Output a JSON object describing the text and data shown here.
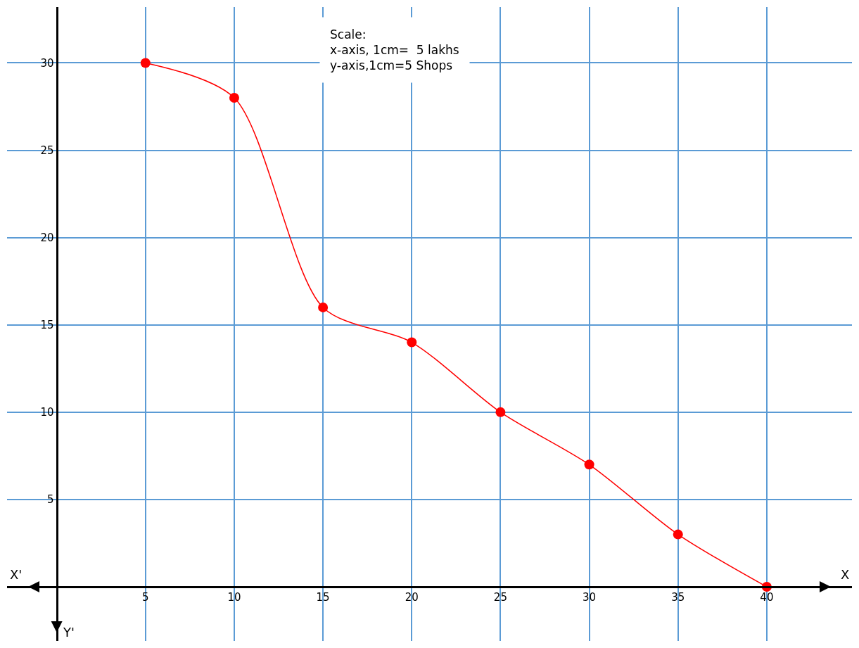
{
  "chart_data": {
    "type": "line",
    "xlabel": "X",
    "x": [
      5,
      10,
      15,
      20,
      25,
      30,
      35,
      40
    ],
    "series": [
      {
        "color": "#ff0000",
        "values": [
          30,
          28,
          16,
          14,
          10,
          7,
          3,
          0
        ]
      }
    ],
    "xlim": [
      -2.8,
      44.8
    ],
    "ylim": [
      -3.1,
      33.2
    ],
    "xticks": [
      5,
      10,
      15,
      20,
      25,
      30,
      35,
      40
    ],
    "yticks": [
      5,
      10,
      15,
      20,
      25,
      30
    ],
    "grid": true,
    "marker": "circle",
    "line_style": "solid",
    "annotations": [
      "X'",
      "Y'",
      "Scale:\nx-axis, 1cm=  5 lakhs\ny-axis,1cm=5 Shops"
    ]
  }
}
